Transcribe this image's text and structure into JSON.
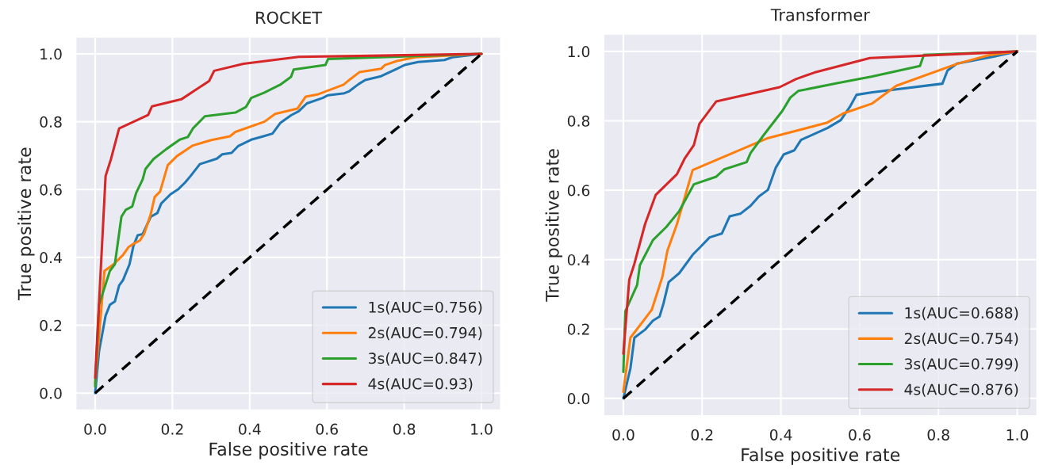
{
  "chart_data": [
    {
      "type": "line",
      "title": "ROCKET",
      "xlabel": "False positive rate",
      "ylabel": "True positive rate",
      "xlim": [
        -0.05,
        1.05
      ],
      "ylim": [
        -0.05,
        1.05
      ],
      "xticks": [
        {
          "value": 0,
          "label": "0.0"
        },
        {
          "value": 0.2,
          "label": "0.2"
        },
        {
          "value": 0.4,
          "label": "0.4"
        },
        {
          "value": 0.6,
          "label": "0.6"
        },
        {
          "value": 0.8,
          "label": "0.8"
        },
        {
          "value": 1,
          "label": "1.0"
        }
      ],
      "yticks": [
        {
          "value": 0,
          "label": "0.0"
        },
        {
          "value": 0.2,
          "label": "0.2"
        },
        {
          "value": 0.4,
          "label": "0.4"
        },
        {
          "value": 0.6,
          "label": "0.6"
        },
        {
          "value": 0.8,
          "label": "0.8"
        },
        {
          "value": 1,
          "label": "1.0"
        }
      ],
      "grid": true,
      "legend": "bottom right",
      "series": [
        {
          "name": "1s(AUC=0.756)",
          "color": "#1f77b4",
          "x": [
            0,
            0.01,
            0.027,
            0.038,
            0.051,
            0.062,
            0.072,
            0.089,
            0.099,
            0.11,
            0.123,
            0.144,
            0.161,
            0.171,
            0.195,
            0.216,
            0.233,
            0.247,
            0.271,
            0.315,
            0.329,
            0.353,
            0.37,
            0.404,
            0.432,
            0.459,
            0.479,
            0.507,
            0.527,
            0.548,
            0.589,
            0.603,
            0.645,
            0.658,
            0.682,
            0.699,
            0.74,
            0.781,
            0.801,
            0.836,
            0.904,
            0.925,
            1
          ],
          "values": [
            0,
            0.123,
            0.228,
            0.26,
            0.27,
            0.317,
            0.333,
            0.38,
            0.434,
            0.465,
            0.469,
            0.52,
            0.531,
            0.559,
            0.586,
            0.602,
            0.621,
            0.64,
            0.675,
            0.691,
            0.704,
            0.708,
            0.728,
            0.747,
            0.756,
            0.765,
            0.796,
            0.819,
            0.831,
            0.854,
            0.87,
            0.878,
            0.884,
            0.89,
            0.911,
            0.923,
            0.934,
            0.956,
            0.967,
            0.976,
            0.982,
            0.99,
            1
          ]
        },
        {
          "name": "2s(AUC=0.794)",
          "color": "#ff7f0e",
          "x": [
            0,
            0.024,
            0.048,
            0.072,
            0.086,
            0.099,
            0.116,
            0.127,
            0.144,
            0.154,
            0.168,
            0.178,
            0.188,
            0.212,
            0.253,
            0.301,
            0.349,
            0.363,
            0.438,
            0.466,
            0.524,
            0.545,
            0.575,
            0.643,
            0.661,
            0.684,
            0.74,
            0.75,
            0.781,
            0.828,
            1
          ],
          "values": [
            0.03,
            0.36,
            0.38,
            0.407,
            0.43,
            0.44,
            0.45,
            0.47,
            0.528,
            0.578,
            0.594,
            0.633,
            0.672,
            0.699,
            0.73,
            0.746,
            0.757,
            0.77,
            0.8,
            0.823,
            0.839,
            0.874,
            0.88,
            0.909,
            0.926,
            0.946,
            0.956,
            0.967,
            0.979,
            0.99,
            1
          ]
        },
        {
          "name": "3s(AUC=0.847)",
          "color": "#2ca02c",
          "x": [
            0,
            0.01,
            0.038,
            0.051,
            0.068,
            0.079,
            0.096,
            0.106,
            0.123,
            0.13,
            0.151,
            0.185,
            0.219,
            0.24,
            0.253,
            0.284,
            0.363,
            0.39,
            0.404,
            0.438,
            0.479,
            0.507,
            0.514,
            0.596,
            0.603,
            1
          ],
          "values": [
            0.02,
            0.26,
            0.36,
            0.38,
            0.52,
            0.54,
            0.55,
            0.59,
            0.63,
            0.66,
            0.69,
            0.72,
            0.747,
            0.755,
            0.78,
            0.816,
            0.827,
            0.843,
            0.87,
            0.886,
            0.909,
            0.932,
            0.954,
            0.967,
            0.985,
            1
          ]
        },
        {
          "name": "4s(AUC=0.93)",
          "color": "#d62728",
          "x": [
            0,
            0.027,
            0.041,
            0.062,
            0.137,
            0.147,
            0.223,
            0.295,
            0.308,
            0.384,
            0.527,
            1
          ],
          "values": [
            0.045,
            0.64,
            0.69,
            0.78,
            0.82,
            0.845,
            0.866,
            0.92,
            0.95,
            0.971,
            0.991,
            1
          ]
        },
        {
          "color": "#000000",
          "line_style": "dashed",
          "x": [
            0,
            1
          ],
          "values": [
            0,
            1
          ]
        }
      ]
    },
    {
      "type": "line",
      "title": "Transformer",
      "xlabel": "False positive rate",
      "ylabel": "True positive rate",
      "xlim": [
        -0.05,
        1.05
      ],
      "ylim": [
        -0.05,
        1.05
      ],
      "xticks": [
        {
          "value": 0,
          "label": "0.0"
        },
        {
          "value": 0.2,
          "label": "0.2"
        },
        {
          "value": 0.4,
          "label": "0.4"
        },
        {
          "value": 0.6,
          "label": "0.6"
        },
        {
          "value": 0.8,
          "label": "0.8"
        },
        {
          "value": 1,
          "label": "1.0"
        }
      ],
      "yticks": [
        {
          "value": 0,
          "label": "0.0"
        },
        {
          "value": 0.2,
          "label": "0.2"
        },
        {
          "value": 0.4,
          "label": "0.4"
        },
        {
          "value": 0.6,
          "label": "0.6"
        },
        {
          "value": 0.8,
          "label": "0.8"
        },
        {
          "value": 1,
          "label": "1.0"
        }
      ],
      "grid": true,
      "legend": "bottom right",
      "series": [
        {
          "name": "1s(AUC=0.688)",
          "color": "#1f77b4",
          "x": [
            0,
            0.018,
            0.028,
            0.055,
            0.075,
            0.092,
            0.102,
            0.115,
            0.142,
            0.176,
            0.196,
            0.219,
            0.25,
            0.27,
            0.297,
            0.323,
            0.344,
            0.367,
            0.387,
            0.407,
            0.434,
            0.451,
            0.518,
            0.552,
            0.575,
            0.592,
            0.632,
            0.81,
            0.823,
            0.847,
            0.94,
            1
          ],
          "values": [
            0,
            0.087,
            0.175,
            0.198,
            0.224,
            0.236,
            0.274,
            0.335,
            0.361,
            0.414,
            0.437,
            0.464,
            0.475,
            0.525,
            0.532,
            0.555,
            0.582,
            0.601,
            0.665,
            0.703,
            0.715,
            0.745,
            0.779,
            0.802,
            0.84,
            0.875,
            0.882,
            0.907,
            0.945,
            0.965,
            0.985,
            1
          ]
        },
        {
          "name": "2s(AUC=0.754)",
          "color": "#ff7f0e",
          "x": [
            0,
            0.018,
            0.072,
            0.099,
            0.112,
            0.136,
            0.176,
            0.364,
            0.518,
            0.558,
            0.632,
            0.693,
            0.847,
            0.927,
            1
          ],
          "values": [
            0.019,
            0.175,
            0.255,
            0.35,
            0.426,
            0.502,
            0.658,
            0.749,
            0.795,
            0.821,
            0.85,
            0.901,
            0.964,
            0.989,
            1
          ]
        },
        {
          "name": "3s(AUC=0.799)",
          "color": "#2ca02c",
          "x": [
            0,
            0.005,
            0.035,
            0.042,
            0.075,
            0.109,
            0.142,
            0.179,
            0.236,
            0.256,
            0.313,
            0.323,
            0.357,
            0.404,
            0.424,
            0.444,
            0.545,
            0.632,
            0.753,
            0.763,
            1
          ],
          "values": [
            0.076,
            0.251,
            0.327,
            0.384,
            0.456,
            0.494,
            0.54,
            0.617,
            0.639,
            0.66,
            0.681,
            0.707,
            0.76,
            0.829,
            0.867,
            0.886,
            0.909,
            0.928,
            0.958,
            0.99,
            1
          ]
        },
        {
          "name": "4s(AUC=0.876)",
          "color": "#d62728",
          "x": [
            0,
            0.008,
            0.015,
            0.028,
            0.055,
            0.082,
            0.136,
            0.156,
            0.179,
            0.193,
            0.236,
            0.397,
            0.438,
            0.485,
            0.626,
            1
          ],
          "values": [
            0.129,
            0.243,
            0.342,
            0.388,
            0.502,
            0.586,
            0.646,
            0.692,
            0.73,
            0.791,
            0.856,
            0.897,
            0.92,
            0.939,
            0.981,
            1
          ]
        },
        {
          "color": "#000000",
          "line_style": "dashed",
          "x": [
            0,
            1
          ],
          "values": [
            0,
            1
          ]
        }
      ]
    }
  ]
}
